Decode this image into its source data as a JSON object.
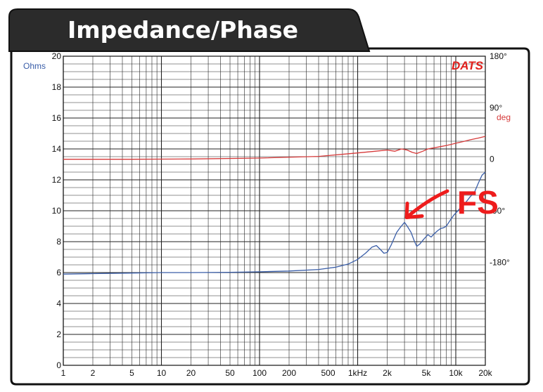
{
  "chart_data": {
    "type": "line",
    "title": "Impedance/Phase",
    "brand": "DATS",
    "x_scale": "log",
    "xlim": [
      1,
      20000
    ],
    "x_ticks": [
      {
        "v": 1,
        "label": "1"
      },
      {
        "v": 2,
        "label": "2"
      },
      {
        "v": 5,
        "label": "5"
      },
      {
        "v": 10,
        "label": "10"
      },
      {
        "v": 20,
        "label": "20"
      },
      {
        "v": 50,
        "label": "50"
      },
      {
        "v": 100,
        "label": "100"
      },
      {
        "v": 200,
        "label": "200"
      },
      {
        "v": 500,
        "label": "500"
      },
      {
        "v": 1000,
        "label": "1kHz"
      },
      {
        "v": 2000,
        "label": "2k"
      },
      {
        "v": 5000,
        "label": "5k"
      },
      {
        "v": 10000,
        "label": "10k"
      },
      {
        "v": 20000,
        "label": "20k"
      }
    ],
    "y_left": {
      "unit_label": "Ohms",
      "range": [
        0,
        20
      ],
      "ticks": [
        0,
        2,
        4,
        6,
        8,
        10,
        12,
        14,
        16,
        18,
        20
      ]
    },
    "y_right": {
      "unit_label": "deg",
      "range": [
        -360,
        180
      ],
      "ticks": [
        {
          "v": 180,
          "label": "180°"
        },
        {
          "v": 90,
          "label": "90°"
        },
        {
          "v": 0,
          "label": "0"
        },
        {
          "v": -90,
          "label": "-90°"
        },
        {
          "v": -180,
          "label": "-180°"
        }
      ]
    },
    "grid": true,
    "series": [
      {
        "name": "",
        "axis": "left",
        "color": "#3a5ea8",
        "points": [
          [
            1,
            5.9
          ],
          [
            2,
            5.93
          ],
          [
            5,
            5.97
          ],
          [
            10,
            6.0
          ],
          [
            20,
            6.0
          ],
          [
            50,
            6.02
          ],
          [
            100,
            6.05
          ],
          [
            200,
            6.1
          ],
          [
            400,
            6.2
          ],
          [
            600,
            6.35
          ],
          [
            800,
            6.55
          ],
          [
            1000,
            6.85
          ],
          [
            1200,
            7.25
          ],
          [
            1400,
            7.65
          ],
          [
            1550,
            7.75
          ],
          [
            1700,
            7.5
          ],
          [
            1850,
            7.25
          ],
          [
            2000,
            7.3
          ],
          [
            2200,
            7.8
          ],
          [
            2500,
            8.6
          ],
          [
            2700,
            8.9
          ],
          [
            3000,
            9.25
          ],
          [
            3200,
            9.0
          ],
          [
            3500,
            8.6
          ],
          [
            3800,
            8.0
          ],
          [
            4000,
            7.7
          ],
          [
            4300,
            7.85
          ],
          [
            4700,
            8.15
          ],
          [
            5200,
            8.45
          ],
          [
            5600,
            8.3
          ],
          [
            6000,
            8.5
          ],
          [
            6500,
            8.7
          ],
          [
            7000,
            8.85
          ],
          [
            7500,
            8.9
          ],
          [
            8000,
            9.0
          ],
          [
            8800,
            9.4
          ],
          [
            9500,
            9.7
          ],
          [
            10500,
            10.0
          ],
          [
            11500,
            10.3
          ],
          [
            12500,
            10.5
          ],
          [
            14000,
            10.9
          ],
          [
            15500,
            11.2
          ],
          [
            17000,
            11.8
          ],
          [
            18500,
            12.3
          ],
          [
            20000,
            12.5
          ]
        ]
      },
      {
        "name": "",
        "axis": "right",
        "color": "#d63a3a",
        "points": [
          [
            1,
            0
          ],
          [
            5,
            0
          ],
          [
            20,
            0.5
          ],
          [
            100,
            2
          ],
          [
            400,
            5
          ],
          [
            1000,
            11
          ],
          [
            1500,
            14
          ],
          [
            2000,
            16
          ],
          [
            2400,
            14
          ],
          [
            2800,
            18
          ],
          [
            3200,
            16
          ],
          [
            3600,
            12
          ],
          [
            4000,
            10
          ],
          [
            4600,
            14
          ],
          [
            5200,
            18
          ],
          [
            6000,
            20
          ],
          [
            7000,
            22
          ],
          [
            8000,
            24
          ],
          [
            9000,
            26
          ],
          [
            10000,
            28
          ],
          [
            12000,
            31
          ],
          [
            14000,
            34
          ],
          [
            17000,
            37
          ],
          [
            20000,
            40
          ]
        ]
      }
    ],
    "annotation": {
      "text": "FS",
      "color": "#ee1c1c",
      "points_to": [
        3000,
        9.25
      ]
    }
  }
}
